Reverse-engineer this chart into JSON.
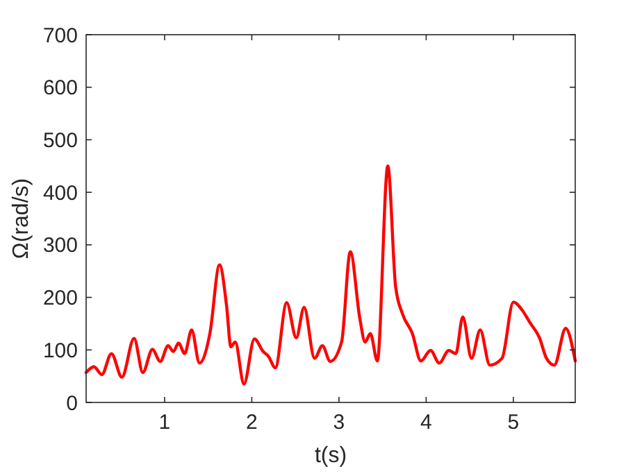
{
  "chart_data": {
    "type": "line",
    "xlabel": "t(s)",
    "ylabel": "Ω(rad/s)",
    "xlim": [
      0.1,
      5.71
    ],
    "ylim": [
      0,
      700
    ],
    "xticks": [
      1,
      2,
      3,
      4,
      5
    ],
    "yticks": [
      0,
      100,
      200,
      300,
      400,
      500,
      600,
      700
    ],
    "grid": false,
    "marker": "none",
    "line_style": "solid",
    "series": [
      {
        "color": "#ff0000",
        "x": [
          0.1,
          0.19,
          0.28,
          0.39,
          0.51,
          0.65,
          0.75,
          0.86,
          0.95,
          1.04,
          1.1,
          1.16,
          1.23,
          1.31,
          1.4,
          1.52,
          1.63,
          1.71,
          1.76,
          1.81,
          1.91,
          2.03,
          2.13,
          2.19,
          2.27,
          2.4,
          2.51,
          2.6,
          2.72,
          2.81,
          2.9,
          3.03,
          3.13,
          3.24,
          3.3,
          3.36,
          3.44,
          3.56,
          3.65,
          3.73,
          3.84,
          3.94,
          4.05,
          4.15,
          4.26,
          4.34,
          4.42,
          4.52,
          4.62,
          4.73,
          4.87,
          5.0,
          5.1,
          5.19,
          5.3,
          5.38,
          5.47,
          5.6,
          5.71
        ],
        "values": [
          57,
          68,
          53,
          93,
          48,
          122,
          57,
          101,
          78,
          108,
          97,
          113,
          93,
          138,
          75,
          132,
          262,
          185,
          106,
          115,
          35,
          121,
          97,
          88,
          66,
          190,
          123,
          181,
          84,
          108,
          78,
          115,
          287,
          159,
          115,
          131,
          79,
          450,
          220,
          168,
          132,
          79,
          99,
          75,
          99,
          93,
          163,
          84,
          138,
          71,
          84,
          191,
          176,
          152,
          123,
          84,
          71,
          141,
          79
        ]
      }
    ]
  }
}
